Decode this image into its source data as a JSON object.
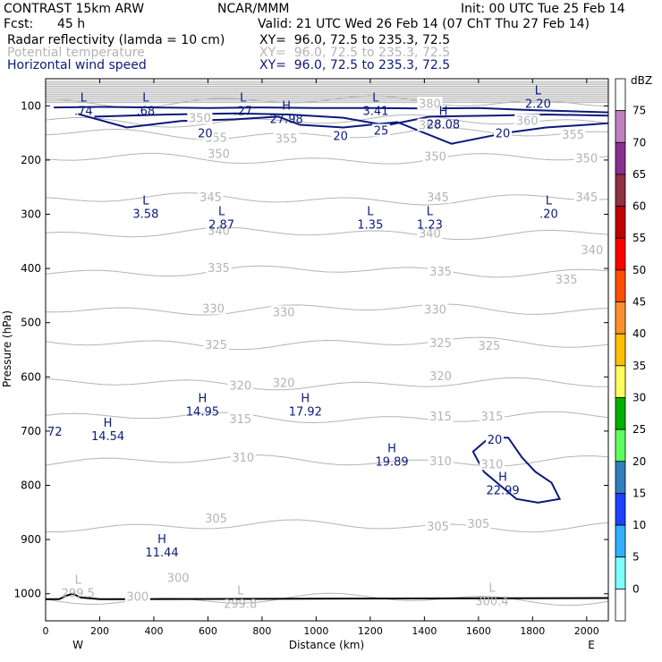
{
  "header": {
    "model": "CONTRAST 15km ARW",
    "org": "NCAR/MMM",
    "init": "Init: 00 UTC Tue 25 Feb 14",
    "fcst_label": "Fcst:",
    "fcst_value": "45 h",
    "valid": "Valid: 21 UTC Wed 26 Feb 14 (07 ChT Thu 27 Feb 14)",
    "fields": [
      {
        "name": "Radar reflectivity (lamda = 10 cm)",
        "xy": "XY=  96.0, 72.5 to 235.3, 72.5"
      },
      {
        "name": "Potential temperature",
        "xy": "XY=  96.0, 72.5 to 235.3, 72.5"
      },
      {
        "name": "Horizontal wind speed",
        "xy": "XY=  96.0, 72.5 to 235.3, 72.5"
      }
    ]
  },
  "colors": {
    "theta": "#b4b4b4",
    "wind": "#0a1a7a",
    "text": "#000000"
  },
  "chart_data": {
    "type": "cross-section contour",
    "xlabel": "Distance (km)",
    "ylabel": "Pressure (hPa)",
    "xlim": [
      0,
      2080
    ],
    "ylim": [
      1050,
      50
    ],
    "x_ticks": [
      "0",
      "200",
      "400",
      "600",
      "800",
      "1000",
      "1200",
      "1400",
      "1600",
      "1800",
      "2000"
    ],
    "y_ticks": [
      "100",
      "200",
      "300",
      "400",
      "500",
      "600",
      "700",
      "800",
      "900",
      "1000"
    ],
    "endpoints": {
      "left": "W",
      "right": "E"
    },
    "theta_contours": [
      {
        "label": "300",
        "p": 1010
      },
      {
        "label": "305",
        "p": 875
      },
      {
        "label": "310",
        "p": 755
      },
      {
        "label": "315",
        "p": 675
      },
      {
        "label": "320",
        "p": 613
      },
      {
        "label": "325",
        "p": 538
      },
      {
        "label": "330",
        "p": 475
      },
      {
        "label": "335",
        "p": 405
      },
      {
        "label": "340",
        "p": 335
      },
      {
        "label": "345",
        "p": 272
      },
      {
        "label": "350",
        "p": 198
      },
      {
        "label": "355",
        "p": 152
      },
      {
        "label": "360",
        "p": 128
      },
      {
        "label": "380",
        "p": 92
      }
    ],
    "theta_labels": [
      {
        "text": "380",
        "x": 1420,
        "p": 95
      },
      {
        "text": "350",
        "x": 570,
        "p": 122
      },
      {
        "text": "360",
        "x": 1420,
        "p": 135
      },
      {
        "text": "360",
        "x": 1780,
        "p": 127
      },
      {
        "text": "355",
        "x": 630,
        "p": 158
      },
      {
        "text": "355",
        "x": 890,
        "p": 160
      },
      {
        "text": "355",
        "x": 1950,
        "p": 152
      },
      {
        "text": "350",
        "x": 640,
        "p": 188
      },
      {
        "text": "350",
        "x": 1440,
        "p": 193
      },
      {
        "text": "350",
        "x": 2000,
        "p": 196
      },
      {
        "text": "345",
        "x": 610,
        "p": 268
      },
      {
        "text": "345",
        "x": 1450,
        "p": 268
      },
      {
        "text": "345",
        "x": 2000,
        "p": 268
      },
      {
        "text": "340",
        "x": 640,
        "p": 330
      },
      {
        "text": "340",
        "x": 1420,
        "p": 335
      },
      {
        "text": "340",
        "x": 2020,
        "p": 365
      },
      {
        "text": "335",
        "x": 640,
        "p": 398
      },
      {
        "text": "335",
        "x": 1460,
        "p": 405
      },
      {
        "text": "335",
        "x": 1925,
        "p": 420
      },
      {
        "text": "330",
        "x": 620,
        "p": 473
      },
      {
        "text": "330",
        "x": 880,
        "p": 480
      },
      {
        "text": "330",
        "x": 1440,
        "p": 475
      },
      {
        "text": "325",
        "x": 630,
        "p": 540
      },
      {
        "text": "325",
        "x": 1460,
        "p": 537
      },
      {
        "text": "325",
        "x": 1640,
        "p": 542
      },
      {
        "text": "320",
        "x": 720,
        "p": 615
      },
      {
        "text": "320",
        "x": 880,
        "p": 610
      },
      {
        "text": "320",
        "x": 1460,
        "p": 598
      },
      {
        "text": "315",
        "x": 720,
        "p": 677
      },
      {
        "text": "315",
        "x": 1460,
        "p": 672
      },
      {
        "text": "315",
        "x": 1650,
        "p": 672
      },
      {
        "text": "310",
        "x": 730,
        "p": 748
      },
      {
        "text": "310",
        "x": 1460,
        "p": 755
      },
      {
        "text": "310",
        "x": 1650,
        "p": 760
      },
      {
        "text": "305",
        "x": 630,
        "p": 860
      },
      {
        "text": "305",
        "x": 1450,
        "p": 875
      },
      {
        "text": "305",
        "x": 1600,
        "p": 870
      },
      {
        "text": "300",
        "x": 490,
        "p": 970
      },
      {
        "text": "300",
        "x": 340,
        "p": 1005
      }
    ],
    "wind_contours": [
      {
        "label": "20",
        "points": [
          [
            30,
            103
          ],
          [
            200,
            102
          ],
          [
            400,
            103
          ],
          [
            600,
            104
          ],
          [
            800,
            103
          ],
          [
            1000,
            104
          ],
          [
            1200,
            104
          ],
          [
            1400,
            105
          ],
          [
            1600,
            104
          ],
          [
            1800,
            108
          ],
          [
            2080,
            112
          ]
        ]
      },
      {
        "label": "20",
        "points": [
          [
            120,
            115
          ],
          [
            300,
            140
          ],
          [
            500,
            128
          ],
          [
            700,
            125
          ],
          [
            860,
            120
          ],
          [
            940,
            135
          ],
          [
            1100,
            140
          ],
          [
            1300,
            130
          ],
          [
            1500,
            170
          ],
          [
            1700,
            150
          ],
          [
            1850,
            140
          ],
          [
            2000,
            135
          ],
          [
            2080,
            132
          ]
        ]
      },
      {
        "label": "25",
        "points": [
          [
            180,
            120
          ],
          [
            450,
            116
          ],
          [
            700,
            114
          ],
          [
            900,
            116
          ],
          [
            1100,
            122
          ],
          [
            1260,
            136
          ],
          [
            1420,
            120
          ],
          [
            1650,
            118
          ],
          [
            1850,
            116
          ],
          [
            2080,
            118
          ]
        ]
      },
      {
        "label": "20",
        "points": [
          [
            1620,
            775
          ],
          [
            1580,
            738
          ],
          [
            1640,
            712
          ],
          [
            1710,
            712
          ],
          [
            1760,
            748
          ],
          [
            1810,
            775
          ],
          [
            1870,
            795
          ],
          [
            1900,
            825
          ],
          [
            1820,
            832
          ],
          [
            1740,
            825
          ],
          [
            1680,
            800
          ],
          [
            1620,
            775
          ]
        ]
      }
    ],
    "wind_labels": [
      {
        "text": "20",
        "x": 590,
        "p": 150
      },
      {
        "text": "20",
        "x": 1090,
        "p": 155
      },
      {
        "text": "25",
        "x": 1240,
        "p": 145
      },
      {
        "text": "20",
        "x": 1690,
        "p": 150
      },
      {
        "text": "20",
        "x": 1660,
        "p": 715
      }
    ],
    "extrema": [
      {
        "kind": "L",
        "value": ".74",
        "x": 140,
        "p": 95
      },
      {
        "kind": "L",
        "value": ".68",
        "x": 370,
        "p": 95
      },
      {
        "kind": "L",
        "value": ".27",
        "x": 730,
        "p": 95
      },
      {
        "kind": "H",
        "value": "27.98",
        "x": 890,
        "p": 110
      },
      {
        "kind": "L",
        "value": "3.41",
        "x": 1220,
        "p": 95
      },
      {
        "kind": "H",
        "value": "28.08",
        "x": 1470,
        "p": 120
      },
      {
        "kind": "L",
        "value": "2.20",
        "x": 1820,
        "p": 82
      },
      {
        "kind": "L",
        "value": "3.58",
        "x": 370,
        "p": 285
      },
      {
        "kind": "L",
        "value": "2.87",
        "x": 650,
        "p": 305
      },
      {
        "kind": "L",
        "value": "1.35",
        "x": 1200,
        "p": 305
      },
      {
        "kind": "L",
        "value": "1.23",
        "x": 1420,
        "p": 305
      },
      {
        "kind": "L",
        "value": ".20",
        "x": 1860,
        "p": 285
      },
      {
        "kind": "H",
        "value": "14.95",
        "x": 580,
        "p": 650
      },
      {
        "kind": "H",
        "value": "17.92",
        "x": 960,
        "p": 650
      },
      {
        "kind": "H",
        "value": "14.54",
        "x": 230,
        "p": 695
      },
      {
        "kind": "H",
        "value": "19.89",
        "x": 1280,
        "p": 742
      },
      {
        "kind": "H",
        "value": "22.99",
        "x": 1690,
        "p": 795
      },
      {
        "kind": "H",
        "value": "11.44",
        "x": 430,
        "p": 910
      },
      {
        "kind": "L",
        "value": "299.5",
        "x": 120,
        "p": 985
      },
      {
        "kind": "L",
        "value": "299.8",
        "x": 720,
        "p": 1005
      },
      {
        "kind": "L",
        "value": "300.4",
        "x": 1650,
        "p": 1000
      }
    ],
    "side_label": "72",
    "ground": [
      [
        0,
        1010
      ],
      [
        50,
        1010
      ],
      [
        80,
        1003
      ],
      [
        100,
        1000
      ],
      [
        130,
        1007
      ],
      [
        200,
        1010
      ],
      [
        2080,
        1008
      ]
    ],
    "colorbar": {
      "unit": "dBZ",
      "levels": [
        "75",
        "70",
        "65",
        "60",
        "55",
        "50",
        "45",
        "40",
        "35",
        "30",
        "25",
        "20",
        "15",
        "10",
        "5",
        "0"
      ],
      "colors": [
        "#ffffff",
        "#c080c0",
        "#8a3090",
        "#903040",
        "#c00000",
        "#ff0000",
        "#ff5000",
        "#ff9030",
        "#ffc000",
        "#ffff60",
        "#00b000",
        "#60ff60",
        "#3080c0",
        "#2040ff",
        "#30b0ff",
        "#80ffff",
        "#ffffff"
      ]
    }
  }
}
